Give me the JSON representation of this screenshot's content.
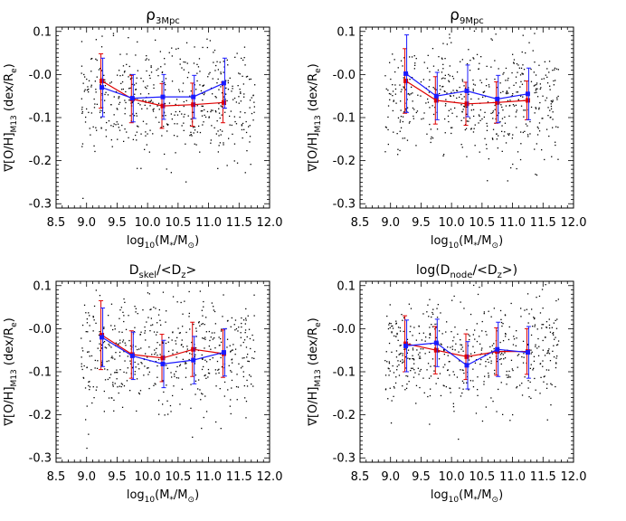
{
  "colors": {
    "red": "#e00000",
    "blue": "#1a1aff",
    "points": "#000000",
    "axes": "#000000"
  },
  "chart_data": [
    {
      "type": "scatter",
      "title_main": "ρ",
      "title_sub": "3Mpc",
      "ylabel_main": "∇[O/H]",
      "ylabel_sub": "M13",
      "ylabel_rest": " (dex/R",
      "ylabel_re_sub": "e",
      "ylabel_close": ")",
      "xlabel_main": "log",
      "xlabel_sub10": "10",
      "xlabel_open": "(M",
      "xlabel_star": "*",
      "xlabel_mid": "/M",
      "xlabel_sun": "⊙",
      "xlabel_close": ")",
      "xlim": [
        8.5,
        12.0
      ],
      "ylim": [
        -0.31,
        0.11
      ],
      "xticks": [
        8.5,
        9.0,
        9.5,
        10.0,
        10.5,
        11.0,
        11.5,
        12.0
      ],
      "xtick_labels": [
        "8.5",
        "9.0",
        "9.5",
        "10.0",
        "10.5",
        "11.0",
        "11.5",
        "12.0"
      ],
      "yticks": [
        0.1,
        0.0,
        -0.1,
        -0.2,
        -0.3
      ],
      "ytick_labels": [
        "0.1",
        "-0.0",
        "-0.1",
        "-0.2",
        "-0.3"
      ],
      "series": [
        {
          "name": "red",
          "x": [
            9.25,
            9.75,
            10.25,
            10.75,
            11.25
          ],
          "y": [
            -0.015,
            -0.057,
            -0.073,
            -0.07,
            -0.065
          ],
          "err": [
            0.063,
            0.055,
            0.052,
            0.05,
            0.047
          ]
        },
        {
          "name": "blue",
          "x": [
            9.25,
            9.75,
            10.25,
            10.75,
            11.25
          ],
          "y": [
            -0.03,
            -0.055,
            -0.052,
            -0.052,
            -0.02
          ],
          "err": [
            0.068,
            0.055,
            0.052,
            0.05,
            0.058
          ]
        }
      ]
    },
    {
      "type": "scatter",
      "title_main": "ρ",
      "title_sub": "9Mpc",
      "ylabel_main": "∇[O/H]",
      "ylabel_sub": "M13",
      "ylabel_rest": " (dex/R",
      "ylabel_re_sub": "e",
      "ylabel_close": ")",
      "xlabel_main": "log",
      "xlabel_sub10": "10",
      "xlabel_open": "(M",
      "xlabel_star": "*",
      "xlabel_mid": "/M",
      "xlabel_sun": "⊙",
      "xlabel_close": ")",
      "xlim": [
        8.5,
        12.0
      ],
      "ylim": [
        -0.31,
        0.11
      ],
      "xticks": [
        8.5,
        9.0,
        9.5,
        10.0,
        10.5,
        11.0,
        11.5,
        12.0
      ],
      "xtick_labels": [
        "8.5",
        "9.0",
        "9.5",
        "10.0",
        "10.5",
        "11.0",
        "11.5",
        "12.0"
      ],
      "yticks": [
        0.1,
        0.0,
        -0.1,
        -0.2,
        -0.3
      ],
      "ytick_labels": [
        "0.1",
        "-0.0",
        "-0.1",
        "-0.2",
        "-0.3"
      ],
      "series": [
        {
          "name": "red",
          "x": [
            9.25,
            9.75,
            10.25,
            10.75,
            11.25
          ],
          "y": [
            -0.015,
            -0.06,
            -0.068,
            -0.065,
            -0.06
          ],
          "err": [
            0.075,
            0.055,
            0.05,
            0.048,
            0.045
          ]
        },
        {
          "name": "blue",
          "x": [
            9.25,
            9.75,
            10.25,
            10.75,
            11.25
          ],
          "y": [
            0.002,
            -0.05,
            -0.038,
            -0.057,
            -0.045
          ],
          "err": [
            0.09,
            0.055,
            0.06,
            0.055,
            0.06
          ]
        }
      ]
    },
    {
      "type": "scatter",
      "title_main": "D",
      "title_sub": "skel",
      "title_rest": "/<D",
      "title_sub2": "z",
      "title_end": ">",
      "ylabel_main": "∇[O/H]",
      "ylabel_sub": "M13",
      "ylabel_rest": " (dex/R",
      "ylabel_re_sub": "e",
      "ylabel_close": ")",
      "xlabel_main": "log",
      "xlabel_sub10": "10",
      "xlabel_open": "(M",
      "xlabel_star": "*",
      "xlabel_mid": "/M",
      "xlabel_sun": "⊙",
      "xlabel_close": ")",
      "xlim": [
        8.5,
        12.0
      ],
      "ylim": [
        -0.31,
        0.11
      ],
      "xticks": [
        8.5,
        9.0,
        9.5,
        10.0,
        10.5,
        11.0,
        11.5,
        12.0
      ],
      "xtick_labels": [
        "8.5",
        "9.0",
        "9.5",
        "10.0",
        "10.5",
        "11.0",
        "11.5",
        "12.0"
      ],
      "yticks": [
        0.1,
        0.0,
        -0.1,
        -0.2,
        -0.3
      ],
      "ytick_labels": [
        "0.1",
        "-0.0",
        "-0.1",
        "-0.2",
        "-0.3"
      ],
      "series": [
        {
          "name": "red",
          "x": [
            9.25,
            9.75,
            10.25,
            10.75,
            11.25
          ],
          "y": [
            -0.015,
            -0.06,
            -0.068,
            -0.048,
            -0.058
          ],
          "err": [
            0.08,
            0.055,
            0.055,
            0.063,
            0.055
          ]
        },
        {
          "name": "blue",
          "x": [
            9.25,
            9.75,
            10.25,
            10.75,
            11.25
          ],
          "y": [
            -0.02,
            -0.063,
            -0.082,
            -0.073,
            -0.055
          ],
          "err": [
            0.068,
            0.055,
            0.055,
            0.055,
            0.055
          ]
        }
      ]
    },
    {
      "type": "scatter",
      "title_main": "log(D",
      "title_sub": "node",
      "title_rest": "/<D",
      "title_sub2": "z",
      "title_end": ">)",
      "ylabel_main": "∇[O/H]",
      "ylabel_sub": "M13",
      "ylabel_rest": " (dex/R",
      "ylabel_re_sub": "e",
      "ylabel_close": ")",
      "xlabel_main": "log",
      "xlabel_sub10": "10",
      "xlabel_open": "(M",
      "xlabel_star": "*",
      "xlabel_mid": "/M",
      "xlabel_sun": "⊙",
      "xlabel_close": ")",
      "xlim": [
        8.5,
        12.0
      ],
      "ylim": [
        -0.31,
        0.11
      ],
      "xticks": [
        8.5,
        9.0,
        9.5,
        10.0,
        10.5,
        11.0,
        11.5,
        12.0
      ],
      "xtick_labels": [
        "8.5",
        "9.0",
        "9.5",
        "10.0",
        "10.5",
        "11.0",
        "11.5",
        "12.0"
      ],
      "yticks": [
        0.1,
        0.0,
        -0.1,
        -0.2,
        -0.3
      ],
      "ytick_labels": [
        "0.1",
        "-0.0",
        "-0.1",
        "-0.2",
        "-0.3"
      ],
      "series": [
        {
          "name": "red",
          "x": [
            9.25,
            9.75,
            10.25,
            10.75,
            11.25
          ],
          "y": [
            -0.035,
            -0.05,
            -0.065,
            -0.053,
            -0.053
          ],
          "err": [
            0.065,
            0.055,
            0.053,
            0.055,
            0.053
          ]
        },
        {
          "name": "blue",
          "x": [
            9.25,
            9.75,
            10.25,
            10.75,
            11.25
          ],
          "y": [
            -0.04,
            -0.033,
            -0.085,
            -0.048,
            -0.055
          ],
          "err": [
            0.06,
            0.055,
            0.055,
            0.063,
            0.06
          ]
        }
      ]
    }
  ]
}
